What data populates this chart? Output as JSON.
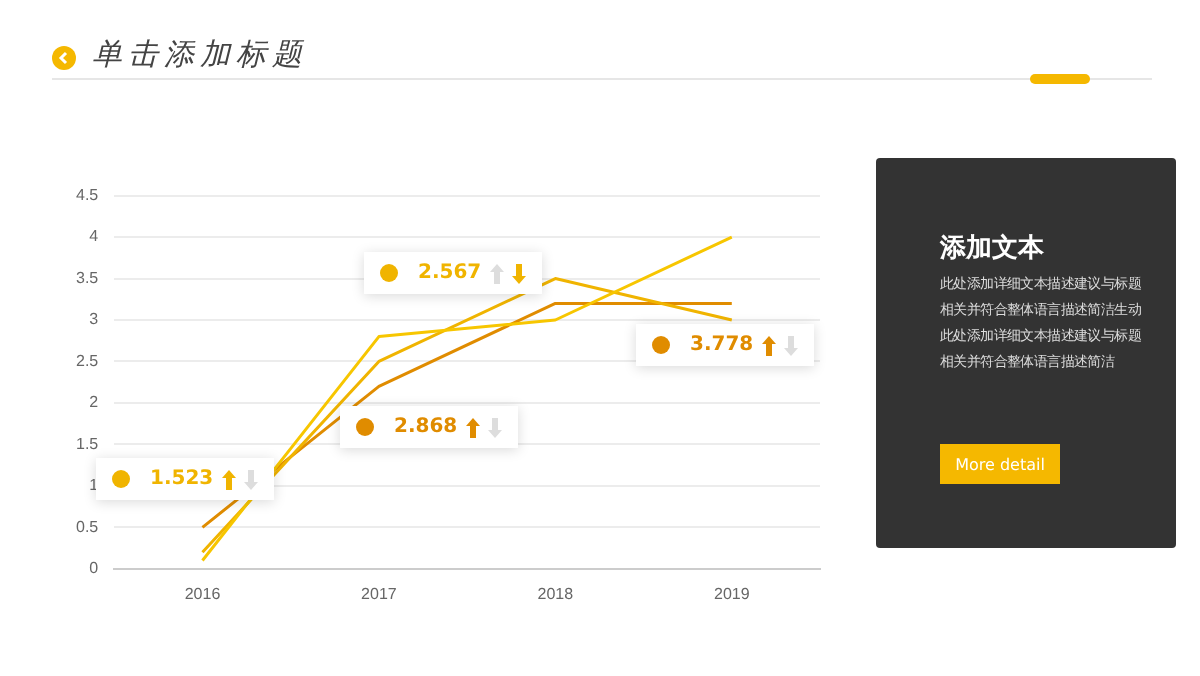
{
  "chart_data": {
    "type": "line",
    "title": "单击添加标题",
    "categories": [
      "2016",
      "2017",
      "2018",
      "2019"
    ],
    "series": [
      {
        "color": "#f7c600",
        "values": [
          0.1,
          2.8,
          3.0,
          4.0
        ]
      },
      {
        "color": "#f0b400",
        "values": [
          0.2,
          2.5,
          3.5,
          3.0
        ]
      },
      {
        "color": "#e08c00",
        "values": [
          0.5,
          2.2,
          3.2,
          3.2
        ]
      }
    ],
    "ylim": [
      0,
      4.5
    ],
    "yticks": [
      0,
      0.5,
      1,
      1.5,
      2,
      2.5,
      3,
      3.5,
      4,
      4.5
    ],
    "grid": "y",
    "legend": false,
    "marker": "none",
    "line_style": "solid",
    "annotations": [
      "1.523",
      "2.567",
      "2.868",
      "3.778",
      "添加文本",
      "此处添加详细文本描述建议与标题",
      "相关并符合整体语言描述简洁生动",
      "此处添加详细文本描述建议与标题",
      "相关并符合整体语言描述简洁",
      "More detail"
    ]
  }
}
